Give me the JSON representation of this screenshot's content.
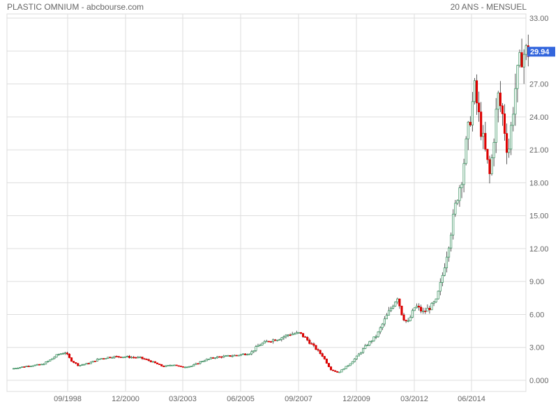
{
  "header": {
    "title": "PLASTIC OMNIUM - abcbourse.com",
    "period": "20 ANS - MENSUEL"
  },
  "colors": {
    "up": "#2e8b57",
    "down": "#dd0000",
    "grid": "#dddddd",
    "last_price_bg": "#3366dd"
  },
  "chart_data": {
    "type": "candlestick",
    "title": "PLASTIC OMNIUM - abcbourse.com",
    "subtitle": "20 ANS - MENSUEL",
    "x_ticks": [
      "09/1998",
      "12/2000",
      "03/2003",
      "06/2005",
      "09/2007",
      "12/2009",
      "03/2012",
      "06/2014"
    ],
    "y_ticks": [
      "0.000",
      "3.00",
      "6.00",
      "9.00",
      "12.00",
      "15.00",
      "18.00",
      "21.00",
      "24.00",
      "27.00",
      "30.00",
      "33.00"
    ],
    "ylim": [
      0,
      33
    ],
    "last_price": "29.94",
    "keypoints": [
      [
        1996.6,
        1.05
      ],
      [
        1997.2,
        1.3
      ],
      [
        1997.8,
        1.45
      ],
      [
        1998.1,
        1.85
      ],
      [
        1998.4,
        2.35
      ],
      [
        1998.7,
        2.55
      ],
      [
        1998.9,
        1.85
      ],
      [
        1999.2,
        1.35
      ],
      [
        1999.6,
        1.55
      ],
      [
        2000.0,
        1.95
      ],
      [
        2000.5,
        2.15
      ],
      [
        2001.0,
        2.15
      ],
      [
        2001.6,
        2.05
      ],
      [
        2002.0,
        1.75
      ],
      [
        2002.5,
        1.25
      ],
      [
        2002.9,
        1.45
      ],
      [
        2003.2,
        1.2
      ],
      [
        2003.6,
        1.3
      ],
      [
        2004.0,
        1.75
      ],
      [
        2004.5,
        2.1
      ],
      [
        2005.0,
        2.2
      ],
      [
        2005.4,
        2.3
      ],
      [
        2005.9,
        2.5
      ],
      [
        2006.2,
        3.2
      ],
      [
        2006.6,
        3.6
      ],
      [
        2007.0,
        3.8
      ],
      [
        2007.4,
        4.2
      ],
      [
        2007.8,
        4.3
      ],
      [
        2008.0,
        3.9
      ],
      [
        2008.3,
        3.2
      ],
      [
        2008.7,
        2.2
      ],
      [
        2009.0,
        1.0
      ],
      [
        2009.3,
        0.7
      ],
      [
        2009.7,
        1.4
      ],
      [
        2010.0,
        2.1
      ],
      [
        2010.4,
        3.2
      ],
      [
        2010.8,
        4.1
      ],
      [
        2011.1,
        5.5
      ],
      [
        2011.4,
        6.8
      ],
      [
        2011.6,
        7.6
      ],
      [
        2011.8,
        5.8
      ],
      [
        2012.0,
        5.2
      ],
      [
        2012.3,
        6.8
      ],
      [
        2012.6,
        6.2
      ],
      [
        2012.9,
        6.7
      ],
      [
        2013.1,
        7.2
      ],
      [
        2013.3,
        9.0
      ],
      [
        2013.6,
        12.5
      ],
      [
        2013.9,
        16.5
      ],
      [
        2014.1,
        18.5
      ],
      [
        2014.3,
        22.0
      ],
      [
        2014.6,
        26.5
      ],
      [
        2014.8,
        23.5
      ],
      [
        2015.0,
        21.0
      ],
      [
        2015.2,
        18.5
      ],
      [
        2015.5,
        26.0
      ],
      [
        2015.7,
        24.0
      ],
      [
        2015.9,
        20.5
      ],
      [
        2016.2,
        27.0
      ],
      [
        2016.4,
        29.5
      ],
      [
        2016.6,
        29.94
      ]
    ]
  }
}
